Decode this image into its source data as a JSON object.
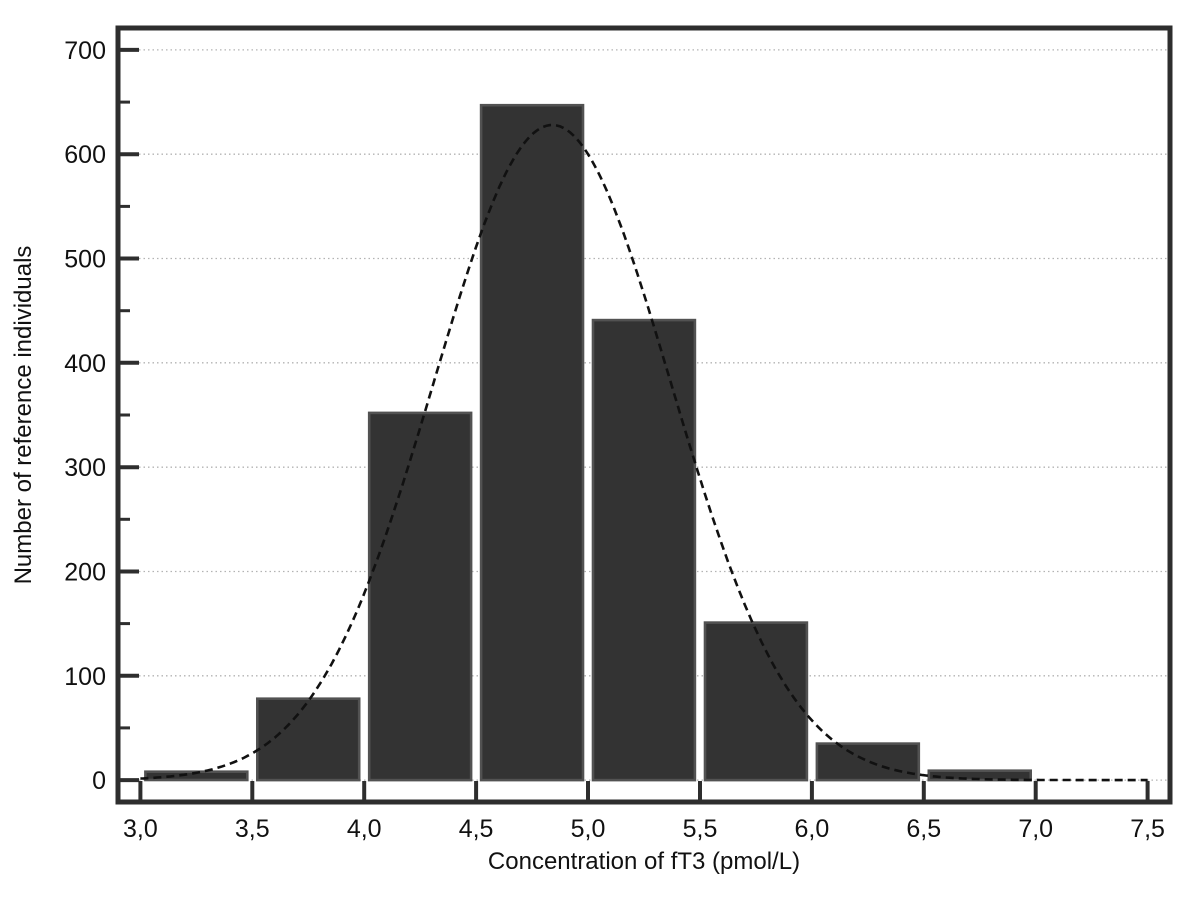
{
  "figure": {
    "background": "#ffffff"
  },
  "chart_data": {
    "type": "bar",
    "subtype": "histogram",
    "title": "",
    "xlabel": "Concentration of fT3 (pmol/L)",
    "ylabel": "Number of reference individuals",
    "bin_edges": [
      3.0,
      3.5,
      4.0,
      4.5,
      5.0,
      5.5,
      6.0,
      6.5,
      7.0
    ],
    "counts": [
      8,
      78,
      352,
      647,
      441,
      151,
      35,
      9
    ],
    "x_ticks": [
      3.0,
      3.5,
      4.0,
      4.5,
      5.0,
      5.5,
      6.0,
      6.5,
      7.0,
      7.5
    ],
    "x_tick_labels": [
      "3,0",
      "3,5",
      "4,0",
      "4,5",
      "5,0",
      "5,5",
      "6,0",
      "6,5",
      "7,0",
      "7,5"
    ],
    "y_ticks": [
      0,
      100,
      200,
      300,
      400,
      500,
      600,
      700
    ],
    "y_tick_labels": [
      "0",
      "100",
      "200",
      "300",
      "400",
      "500",
      "600",
      "700"
    ],
    "y_minor_ticks": [
      50,
      150,
      250,
      350,
      450,
      550,
      650
    ],
    "xlim": [
      2.9,
      7.6
    ],
    "ylim": [
      -21,
      721
    ],
    "grid": "horizontal-dotted",
    "legend": "none",
    "fit_curve": {
      "type": "gaussian",
      "amplitude": 628,
      "mean": 4.84,
      "sigma": 0.53,
      "x_start": 3.0,
      "x_end": 7.5,
      "style": "dashed"
    },
    "colors": {
      "bar_fill": "#333333",
      "bar_border": "#525252",
      "axis": "#2e2e2e",
      "grid": "#b3b3b3",
      "curve": "#111111",
      "text": "#111111",
      "background": "#ffffff"
    }
  }
}
